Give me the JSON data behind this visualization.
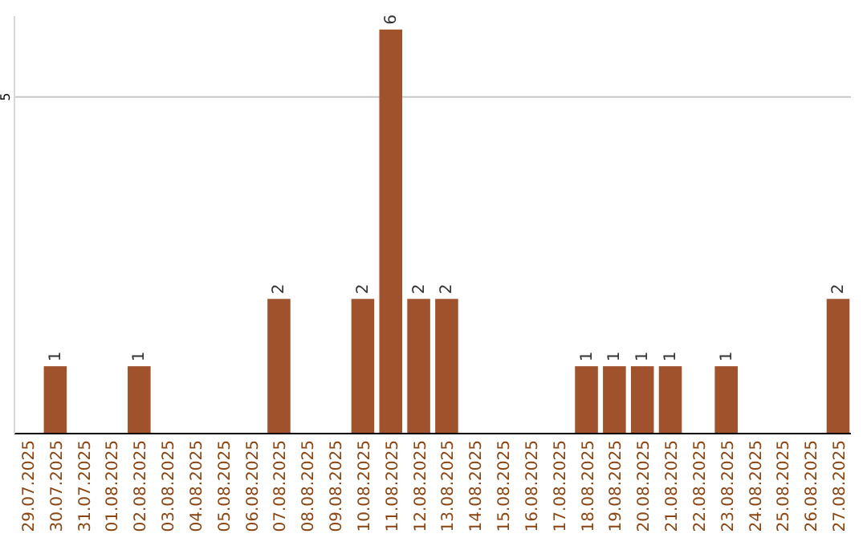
{
  "chart_data": {
    "type": "bar",
    "categories": [
      "29.07.2025",
      "30.07.2025",
      "31.07.2025",
      "01.08.2025",
      "02.08.2025",
      "03.08.2025",
      "04.08.2025",
      "05.08.2025",
      "06.08.2025",
      "07.08.2025",
      "08.08.2025",
      "09.08.2025",
      "10.08.2025",
      "11.08.2025",
      "12.08.2025",
      "13.08.2025",
      "14.08.2025",
      "15.08.2025",
      "16.08.2025",
      "17.08.2025",
      "18.08.2025",
      "19.08.2025",
      "20.08.2025",
      "21.08.2025",
      "22.08.2025",
      "23.08.2025",
      "24.08.2025",
      "25.08.2025",
      "26.08.2025",
      "27.08.2025"
    ],
    "values": [
      0,
      1,
      0,
      0,
      1,
      0,
      0,
      0,
      0,
      2,
      0,
      0,
      2,
      6,
      2,
      2,
      0,
      0,
      0,
      0,
      1,
      1,
      1,
      1,
      0,
      1,
      0,
      0,
      0,
      2
    ],
    "value_labels": [
      null,
      "1",
      null,
      null,
      "1",
      null,
      null,
      null,
      null,
      "2",
      null,
      null,
      "2",
      "6",
      "2",
      "2",
      null,
      null,
      null,
      null,
      "1",
      "1",
      "1",
      "1",
      null,
      "1",
      null,
      null,
      null,
      "2"
    ],
    "color": "#a0522d",
    "ylim": [
      0,
      6.2
    ],
    "yticks": [
      5
    ],
    "grid": "y"
  }
}
